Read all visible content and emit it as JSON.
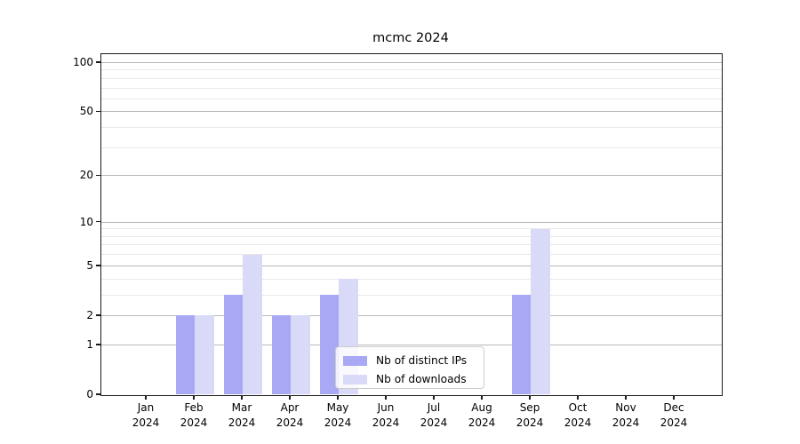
{
  "title": "mcmc 2024",
  "chart_data": {
    "type": "bar",
    "title": "mcmc 2024",
    "categories": [
      "Jan",
      "Feb",
      "Mar",
      "Apr",
      "May",
      "Jun",
      "Jul",
      "Aug",
      "Sep",
      "Oct",
      "Nov",
      "Dec"
    ],
    "category_year": "2024",
    "series": [
      {
        "name": "Nb of distinct IPs",
        "color": "#a8a8f4",
        "values": [
          0,
          2,
          3,
          2,
          3,
          0,
          0,
          0,
          3,
          0,
          0,
          0
        ]
      },
      {
        "name": "Nb of downloads",
        "color": "#d9d9f8",
        "values": [
          0,
          2,
          6,
          2,
          4,
          0,
          0,
          0,
          9,
          0,
          0,
          0
        ]
      }
    ],
    "yscale": "log1p",
    "ylim": [
      0,
      112
    ],
    "y_major_ticks": [
      0,
      1,
      2,
      5,
      10,
      20,
      50,
      100
    ],
    "y_minor_gridlines": [
      3,
      4,
      6,
      7,
      8,
      9,
      30,
      40,
      60,
      70,
      80,
      90
    ],
    "grid": true,
    "legend_position": "lower center"
  },
  "colors": {
    "background": "#ffffff",
    "grid_major": "#b7b7b7",
    "grid_minor": "#e9e9e9",
    "axis": "#1a1a1a",
    "text": "#000000",
    "legend_border": "#cccccc"
  }
}
